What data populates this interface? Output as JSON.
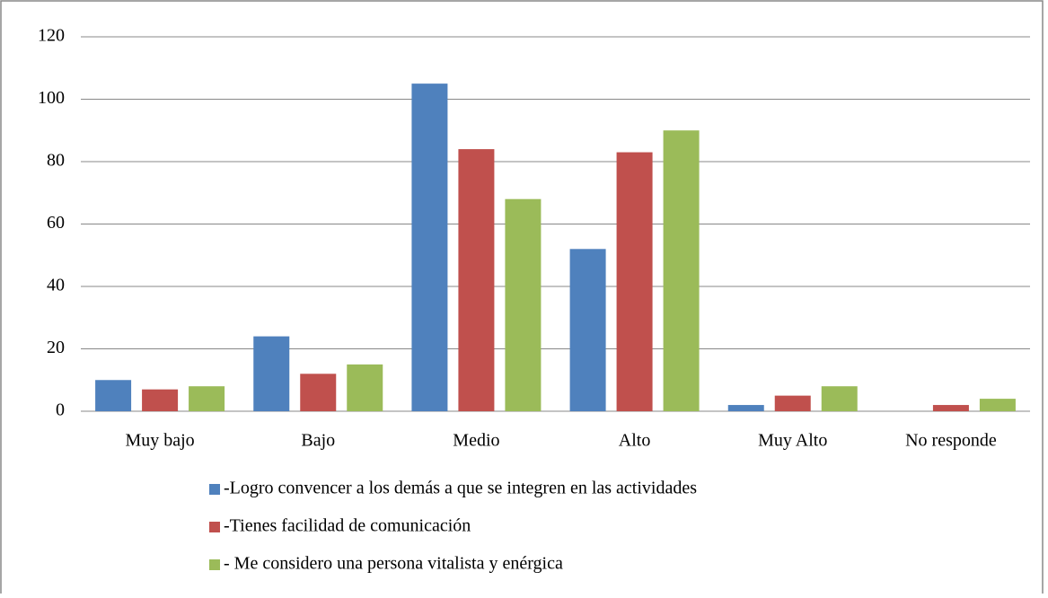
{
  "chart_data": {
    "type": "bar",
    "categories": [
      "Muy bajo",
      "Bajo",
      "Medio",
      "Alto",
      "Muy Alto",
      "No responde"
    ],
    "series": [
      {
        "name": "-Logro convencer a los demás a que se integren en las actividades",
        "color": "#4f81bd",
        "values": [
          10,
          24,
          105,
          52,
          2,
          0
        ]
      },
      {
        "name": "-Tienes facilidad de comunicación",
        "color": "#c0504d",
        "values": [
          7,
          12,
          84,
          83,
          5,
          2
        ]
      },
      {
        "name": "- Me considero una persona vitalista y enérgica",
        "color": "#9bbb59",
        "values": [
          8,
          15,
          68,
          90,
          8,
          4
        ]
      }
    ],
    "ylim": [
      0,
      120
    ],
    "yticks": [
      0,
      20,
      40,
      60,
      80,
      100,
      120
    ],
    "grid": true,
    "legend": "bottom"
  }
}
